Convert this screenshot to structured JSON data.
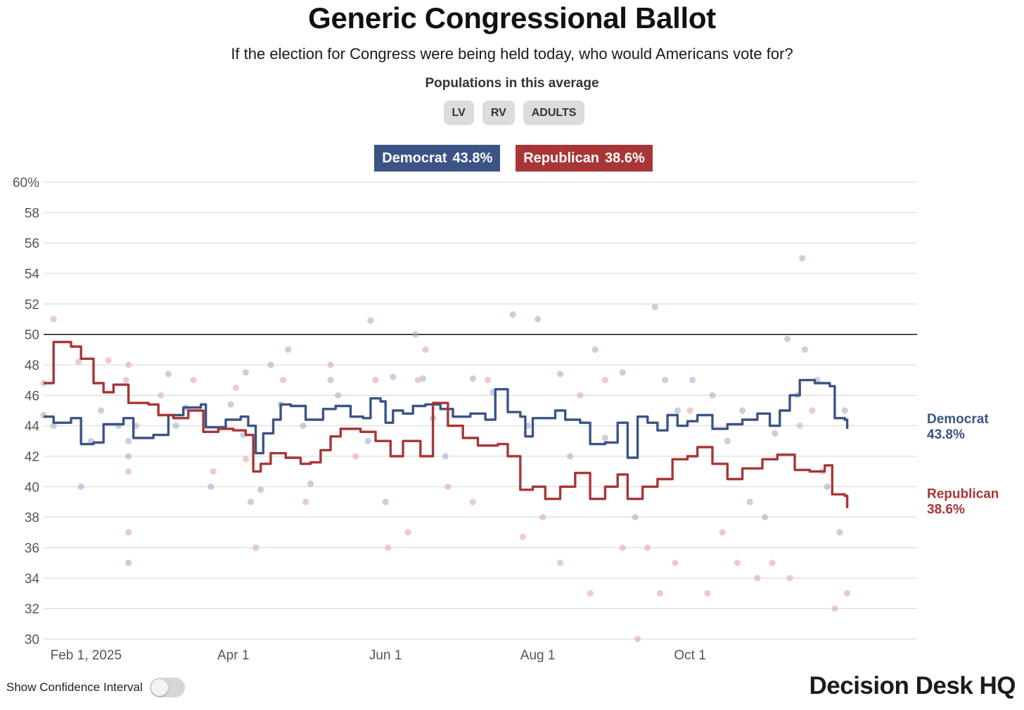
{
  "title": "Generic Congressional Ballot",
  "subtitle": "If the election for Congress were being held today, who would Americans vote for?",
  "populations": {
    "label": "Populations in this average",
    "options": [
      "LV",
      "RV",
      "ADULTS"
    ]
  },
  "legend": {
    "dem": {
      "name": "Democrat",
      "value": "43.8%"
    },
    "rep": {
      "name": "Republican",
      "value": "38.6%"
    }
  },
  "colors": {
    "dem": "#3b5485",
    "rep": "#a83636",
    "dem_dot": "#9aa8c6",
    "rep_dot": "#dba2a2",
    "grid": "#d6d6d6",
    "reference_line": "#000000"
  },
  "toggle": {
    "label": "Show Confidence Interval",
    "on": false
  },
  "brand": "Decision Desk HQ",
  "chart_data": {
    "type": "line",
    "title": "Generic Congressional Ballot",
    "x_range": [
      "2025-01-15",
      "2025-12-31"
    ],
    "ylim": [
      30,
      60
    ],
    "yticks": [
      30,
      32,
      34,
      36,
      38,
      40,
      42,
      44,
      46,
      48,
      50,
      52,
      54,
      56,
      58,
      60
    ],
    "ytick_labels": [
      "30",
      "32",
      "34",
      "36",
      "38",
      "40",
      "42",
      "44",
      "46",
      "48",
      "50",
      "52",
      "54",
      "56",
      "58",
      "60%"
    ],
    "reference_line": 50,
    "xticks": [
      {
        "date": "2025-02-01",
        "label": "Feb 1, 2025"
      },
      {
        "date": "2025-04-01",
        "label": "Apr 1"
      },
      {
        "date": "2025-06-01",
        "label": "Jun 1"
      },
      {
        "date": "2025-08-01",
        "label": "Aug 1"
      },
      {
        "date": "2025-10-01",
        "label": "Oct 1"
      }
    ],
    "series": [
      {
        "name": "Democrat",
        "key": "dem",
        "end_label": "43.8%",
        "points": [
          [
            "2025-01-15",
            44.6
          ],
          [
            "2025-01-19",
            44.2
          ],
          [
            "2025-01-26",
            44.5
          ],
          [
            "2025-01-30",
            42.8
          ],
          [
            "2025-02-04",
            42.9
          ],
          [
            "2025-02-08",
            44.1
          ],
          [
            "2025-02-16",
            44.5
          ],
          [
            "2025-02-20",
            43.2
          ],
          [
            "2025-02-28",
            43.4
          ],
          [
            "2025-03-06",
            44.7
          ],
          [
            "2025-03-12",
            45.2
          ],
          [
            "2025-03-19",
            45.4
          ],
          [
            "2025-03-21",
            43.9
          ],
          [
            "2025-03-27",
            43.9
          ],
          [
            "2025-03-29",
            44.4
          ],
          [
            "2025-04-04",
            44.6
          ],
          [
            "2025-04-07",
            44.0
          ],
          [
            "2025-04-10",
            42.2
          ],
          [
            "2025-04-13",
            43.5
          ],
          [
            "2025-04-17",
            44.4
          ],
          [
            "2025-04-20",
            45.4
          ],
          [
            "2025-04-24",
            45.3
          ],
          [
            "2025-04-30",
            44.4
          ],
          [
            "2025-05-04",
            44.4
          ],
          [
            "2025-05-07",
            45.1
          ],
          [
            "2025-05-12",
            45.3
          ],
          [
            "2025-05-18",
            44.6
          ],
          [
            "2025-05-23",
            44.5
          ],
          [
            "2025-05-26",
            45.8
          ],
          [
            "2025-05-30",
            45.6
          ],
          [
            "2025-06-01",
            44.2
          ],
          [
            "2025-06-04",
            45.0
          ],
          [
            "2025-06-08",
            44.8
          ],
          [
            "2025-06-12",
            45.3
          ],
          [
            "2025-06-17",
            45.4
          ],
          [
            "2025-06-23",
            45.1
          ],
          [
            "2025-06-28",
            44.6
          ],
          [
            "2025-07-05",
            44.8
          ],
          [
            "2025-07-11",
            44.4
          ],
          [
            "2025-07-15",
            46.4
          ],
          [
            "2025-07-20",
            44.9
          ],
          [
            "2025-07-25",
            44.6
          ],
          [
            "2025-07-27",
            43.3
          ],
          [
            "2025-07-30",
            44.5
          ],
          [
            "2025-08-04",
            44.5
          ],
          [
            "2025-08-08",
            45.0
          ],
          [
            "2025-08-12",
            44.4
          ],
          [
            "2025-08-18",
            44.2
          ],
          [
            "2025-08-22",
            42.8
          ],
          [
            "2025-08-28",
            42.9
          ],
          [
            "2025-09-02",
            44.2
          ],
          [
            "2025-09-06",
            41.9
          ],
          [
            "2025-09-10",
            44.6
          ],
          [
            "2025-09-14",
            44.2
          ],
          [
            "2025-09-18",
            43.7
          ],
          [
            "2025-09-22",
            44.7
          ],
          [
            "2025-09-26",
            44.0
          ],
          [
            "2025-09-30",
            44.3
          ],
          [
            "2025-10-04",
            44.7
          ],
          [
            "2025-10-10",
            43.8
          ],
          [
            "2025-10-16",
            44.1
          ],
          [
            "2025-10-22",
            44.4
          ],
          [
            "2025-10-28",
            44.8
          ],
          [
            "2025-11-02",
            44.0
          ],
          [
            "2025-11-06",
            45.0
          ],
          [
            "2025-11-10",
            46.0
          ],
          [
            "2025-11-14",
            47.0
          ],
          [
            "2025-11-20",
            46.8
          ],
          [
            "2025-11-26",
            46.6
          ],
          [
            "2025-11-28",
            44.5
          ],
          [
            "2025-12-02",
            44.4
          ],
          [
            "2025-12-03",
            43.8
          ]
        ]
      },
      {
        "name": "Republican",
        "key": "rep",
        "end_label": "38.6%",
        "points": [
          [
            "2025-01-15",
            46.8
          ],
          [
            "2025-01-19",
            49.5
          ],
          [
            "2025-01-26",
            49.2
          ],
          [
            "2025-01-30",
            48.4
          ],
          [
            "2025-02-04",
            46.8
          ],
          [
            "2025-02-08",
            46.2
          ],
          [
            "2025-02-12",
            46.7
          ],
          [
            "2025-02-18",
            45.5
          ],
          [
            "2025-02-26",
            45.4
          ],
          [
            "2025-03-02",
            44.7
          ],
          [
            "2025-03-08",
            44.5
          ],
          [
            "2025-03-14",
            45.0
          ],
          [
            "2025-03-20",
            43.6
          ],
          [
            "2025-03-26",
            43.8
          ],
          [
            "2025-04-01",
            43.7
          ],
          [
            "2025-04-06",
            43.4
          ],
          [
            "2025-04-09",
            41.0
          ],
          [
            "2025-04-12",
            41.5
          ],
          [
            "2025-04-16",
            42.2
          ],
          [
            "2025-04-22",
            41.9
          ],
          [
            "2025-04-28",
            41.5
          ],
          [
            "2025-05-02",
            41.6
          ],
          [
            "2025-05-06",
            42.4
          ],
          [
            "2025-05-10",
            43.3
          ],
          [
            "2025-05-14",
            43.8
          ],
          [
            "2025-05-22",
            43.6
          ],
          [
            "2025-05-28",
            43.0
          ],
          [
            "2025-06-03",
            42.0
          ],
          [
            "2025-06-08",
            43.0
          ],
          [
            "2025-06-15",
            42.0
          ],
          [
            "2025-06-20",
            45.5
          ],
          [
            "2025-06-26",
            44.0
          ],
          [
            "2025-07-02",
            43.2
          ],
          [
            "2025-07-08",
            42.7
          ],
          [
            "2025-07-16",
            42.8
          ],
          [
            "2025-07-20",
            42.0
          ],
          [
            "2025-07-25",
            39.8
          ],
          [
            "2025-07-30",
            40.0
          ],
          [
            "2025-08-04",
            39.2
          ],
          [
            "2025-08-10",
            40.0
          ],
          [
            "2025-08-16",
            40.9
          ],
          [
            "2025-08-22",
            39.2
          ],
          [
            "2025-08-28",
            40.0
          ],
          [
            "2025-09-02",
            40.8
          ],
          [
            "2025-09-06",
            39.2
          ],
          [
            "2025-09-12",
            40.0
          ],
          [
            "2025-09-18",
            40.5
          ],
          [
            "2025-09-24",
            41.8
          ],
          [
            "2025-09-30",
            42.0
          ],
          [
            "2025-10-04",
            42.6
          ],
          [
            "2025-10-10",
            41.5
          ],
          [
            "2025-10-16",
            40.5
          ],
          [
            "2025-10-22",
            41.2
          ],
          [
            "2025-10-30",
            41.8
          ],
          [
            "2025-11-05",
            42.1
          ],
          [
            "2025-11-12",
            41.1
          ],
          [
            "2025-11-18",
            41.0
          ],
          [
            "2025-11-24",
            41.4
          ],
          [
            "2025-11-27",
            39.5
          ],
          [
            "2025-12-02",
            39.4
          ],
          [
            "2025-12-03",
            38.6
          ]
        ]
      }
    ],
    "poll_points": [
      {
        "series": "dem",
        "points": [
          [
            "2025-01-15",
            44.7
          ],
          [
            "2025-01-19",
            44.0
          ],
          [
            "2025-01-30",
            40.0
          ],
          [
            "2025-02-03",
            43.0
          ],
          [
            "2025-02-07",
            45.0
          ],
          [
            "2025-02-14",
            44.0
          ],
          [
            "2025-02-18",
            43.0
          ],
          [
            "2025-02-18",
            35.0
          ],
          [
            "2025-02-18",
            42.0
          ],
          [
            "2025-02-21",
            44.0
          ],
          [
            "2025-03-06",
            47.4
          ],
          [
            "2025-03-09",
            44.0
          ],
          [
            "2025-03-13",
            45.2
          ],
          [
            "2025-03-23",
            40.0
          ],
          [
            "2025-03-31",
            45.4
          ],
          [
            "2025-04-05",
            43.4
          ],
          [
            "2025-04-06",
            47.5
          ],
          [
            "2025-04-08",
            39.0
          ],
          [
            "2025-04-12",
            39.8
          ],
          [
            "2025-04-16",
            48.0
          ],
          [
            "2025-04-20",
            45.4
          ],
          [
            "2025-04-23",
            49.0
          ],
          [
            "2025-04-29",
            44.0
          ],
          [
            "2025-05-02",
            40.2
          ],
          [
            "2025-05-10",
            47.0
          ],
          [
            "2025-05-13",
            46.0
          ],
          [
            "2025-05-25",
            43.0
          ],
          [
            "2025-05-26",
            50.9
          ],
          [
            "2025-06-01",
            39.0
          ],
          [
            "2025-06-04",
            47.2
          ],
          [
            "2025-06-13",
            50.0
          ],
          [
            "2025-06-16",
            47.1
          ],
          [
            "2025-06-20",
            44.5
          ],
          [
            "2025-06-25",
            42.0
          ],
          [
            "2025-07-06",
            47.1
          ],
          [
            "2025-07-14",
            46.2
          ],
          [
            "2025-07-22",
            51.3
          ],
          [
            "2025-07-28",
            44.0
          ],
          [
            "2025-08-01",
            51.0
          ],
          [
            "2025-08-10",
            47.4
          ],
          [
            "2025-08-14",
            42.0
          ],
          [
            "2025-08-24",
            49.0
          ],
          [
            "2025-08-28",
            43.2
          ],
          [
            "2025-09-04",
            47.5
          ],
          [
            "2025-09-09",
            38.0
          ],
          [
            "2025-09-17",
            51.8
          ],
          [
            "2025-09-21",
            47.0
          ],
          [
            "2025-09-26",
            45.0
          ],
          [
            "2025-10-02",
            47.0
          ],
          [
            "2025-10-10",
            46.0
          ],
          [
            "2025-10-16",
            43.0
          ],
          [
            "2025-10-22",
            45.0
          ],
          [
            "2025-10-25",
            39.0
          ],
          [
            "2025-10-31",
            38.0
          ],
          [
            "2025-11-04",
            43.5
          ],
          [
            "2025-11-09",
            49.7
          ],
          [
            "2025-11-13",
            46.0
          ],
          [
            "2025-11-15",
            55.0
          ],
          [
            "2025-11-16",
            49.0
          ],
          [
            "2025-11-21",
            47.0
          ],
          [
            "2025-11-25",
            40.0
          ],
          [
            "2025-11-30",
            37.0
          ],
          [
            "2025-12-02",
            45.0
          ]
        ]
      },
      {
        "series": "rep",
        "points": [
          [
            "2025-01-15",
            46.8
          ],
          [
            "2025-01-19",
            51.0
          ],
          [
            "2025-01-29",
            48.2
          ],
          [
            "2025-02-10",
            48.3
          ],
          [
            "2025-02-17",
            47.0
          ],
          [
            "2025-02-18",
            48.0
          ],
          [
            "2025-02-18",
            37.0
          ],
          [
            "2025-02-18",
            41.0
          ],
          [
            "2025-03-03",
            46.0
          ],
          [
            "2025-03-16",
            47.0
          ],
          [
            "2025-03-24",
            41.0
          ],
          [
            "2025-04-02",
            46.5
          ],
          [
            "2025-04-06",
            41.8
          ],
          [
            "2025-04-10",
            36.0
          ],
          [
            "2025-04-21",
            47.0
          ],
          [
            "2025-04-30",
            39.0
          ],
          [
            "2025-05-10",
            48.0
          ],
          [
            "2025-05-20",
            42.0
          ],
          [
            "2025-05-28",
            47.0
          ],
          [
            "2025-06-02",
            36.0
          ],
          [
            "2025-06-10",
            37.0
          ],
          [
            "2025-06-14",
            47.0
          ],
          [
            "2025-06-17",
            49.0
          ],
          [
            "2025-06-26",
            40.0
          ],
          [
            "2025-07-06",
            39.0
          ],
          [
            "2025-07-12",
            47.0
          ],
          [
            "2025-07-26",
            36.7
          ],
          [
            "2025-08-03",
            38.0
          ],
          [
            "2025-08-10",
            35.0
          ],
          [
            "2025-08-18",
            46.0
          ],
          [
            "2025-08-22",
            33.0
          ],
          [
            "2025-08-28",
            47.0
          ],
          [
            "2025-09-04",
            36.0
          ],
          [
            "2025-09-10",
            30.0
          ],
          [
            "2025-09-14",
            36.0
          ],
          [
            "2025-09-19",
            33.0
          ],
          [
            "2025-09-25",
            35.0
          ],
          [
            "2025-10-01",
            45.0
          ],
          [
            "2025-10-08",
            33.0
          ],
          [
            "2025-10-14",
            37.0
          ],
          [
            "2025-10-20",
            35.0
          ],
          [
            "2025-10-28",
            34.0
          ],
          [
            "2025-11-03",
            35.0
          ],
          [
            "2025-11-10",
            34.0
          ],
          [
            "2025-11-14",
            44.0
          ],
          [
            "2025-11-19",
            45.0
          ],
          [
            "2025-11-23",
            41.0
          ],
          [
            "2025-11-28",
            32.0
          ],
          [
            "2025-12-03",
            33.0
          ]
        ]
      }
    ]
  }
}
